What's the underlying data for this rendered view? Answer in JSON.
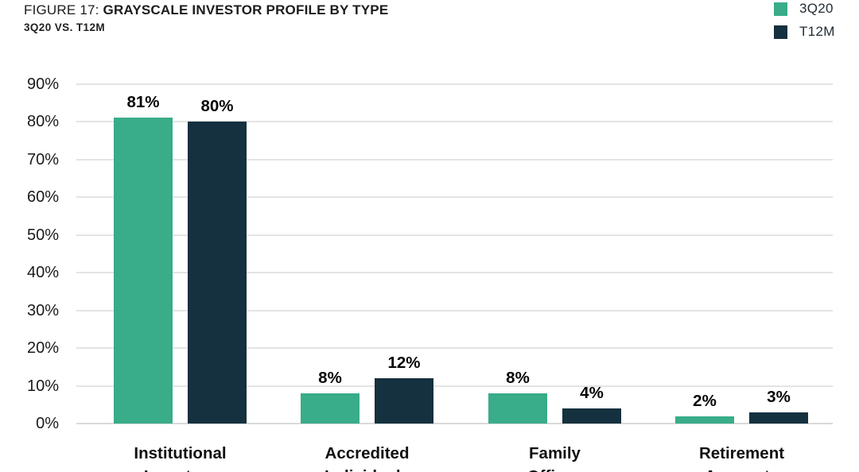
{
  "header": {
    "figure_label": "FIGURE 17:",
    "title": "GRAYSCALE INVESTOR PROFILE BY TYPE",
    "subtitle": "3Q20 VS. T12M"
  },
  "legend": {
    "items": [
      {
        "label": "3Q20",
        "color": "#39AC89"
      },
      {
        "label": "T12M",
        "color": "#15303E"
      }
    ],
    "position": "top-right"
  },
  "colors": {
    "series_3q20": "#39AC89",
    "series_t12m": "#15303E",
    "gridline": "#E4E4E4",
    "text": "#1A1A1A",
    "background": "#FFFFFF"
  },
  "chart_data": {
    "type": "bar",
    "title": "FIGURE 17: GRAYSCALE INVESTOR PROFILE BY TYPE",
    "subtitle": "3Q20 VS. T12M",
    "categories": [
      "Institutional Investors",
      "Accredited Individuals",
      "Family Offices",
      "Retirement Accounts"
    ],
    "category_lines": [
      [
        "Institutional",
        "Investors"
      ],
      [
        "Accredited",
        "Individuals"
      ],
      [
        "Family",
        "Offices"
      ],
      [
        "Retirement",
        "Accounts"
      ]
    ],
    "series": [
      {
        "name": "3Q20",
        "color": "#39AC89",
        "values": [
          81,
          8,
          8,
          2
        ]
      },
      {
        "name": "T12M",
        "color": "#15303E",
        "values": [
          80,
          12,
          4,
          3
        ]
      }
    ],
    "data_labels": [
      [
        "81%",
        "8%",
        "8%",
        "2%"
      ],
      [
        "80%",
        "12%",
        "4%",
        "3%"
      ]
    ],
    "xlabel": "",
    "ylabel": "",
    "ylim": [
      0,
      90
    ],
    "yticks": [
      0,
      10,
      20,
      30,
      40,
      50,
      60,
      70,
      80,
      90
    ],
    "ytick_suffix": "%",
    "grid": "horizontal",
    "legend_position": "top-right"
  }
}
